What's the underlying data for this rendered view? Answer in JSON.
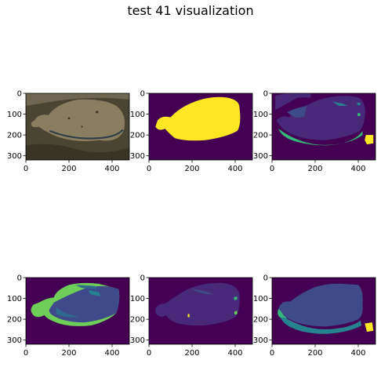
{
  "figure": {
    "title": "test 41 visualization"
  },
  "colors": {
    "viridis_dark": "#440154",
    "viridis_indigo": "#482878",
    "viridis_blue": "#3e4a89",
    "viridis_slate": "#31688e",
    "viridis_teal": "#26828e",
    "viridis_green": "#35b779",
    "viridis_lime": "#6ece58",
    "viridis_yellow": "#fde725",
    "photo_ground": "#4a4432",
    "photo_fish": "#8a7e60"
  },
  "chart_data": [
    {
      "type": "image",
      "content": "photo of flatfish on seabed",
      "xlabel": "",
      "ylabel": "",
      "xlim": [
        0,
        480
      ],
      "ylim": [
        320,
        0
      ],
      "xticks": [
        0,
        200,
        400
      ],
      "yticks": [
        0,
        100,
        200,
        300
      ]
    },
    {
      "type": "image",
      "content": "binary mask (yellow fish on purple)",
      "xlabel": "",
      "ylabel": "",
      "xlim": [
        0,
        480
      ],
      "ylim": [
        320,
        0
      ],
      "xticks": [
        0,
        200,
        400
      ],
      "yticks": [
        0,
        100,
        200,
        300
      ]
    },
    {
      "type": "image",
      "content": "segmentation map",
      "xlabel": "",
      "ylabel": "",
      "xlim": [
        0,
        480
      ],
      "ylim": [
        320,
        0
      ],
      "xticks": [
        0,
        200,
        400
      ],
      "yticks": [
        0,
        100,
        200,
        300
      ]
    },
    {
      "type": "image",
      "content": "segmentation map",
      "xlabel": "",
      "ylabel": "",
      "xlim": [
        0,
        480
      ],
      "ylim": [
        320,
        0
      ],
      "xticks": [
        0,
        200,
        400
      ],
      "yticks": [
        0,
        100,
        200,
        300
      ]
    },
    {
      "type": "image",
      "content": "segmentation map",
      "xlabel": "",
      "ylabel": "",
      "xlim": [
        0,
        480
      ],
      "ylim": [
        320,
        0
      ],
      "xticks": [
        0,
        200,
        400
      ],
      "yticks": [
        0,
        100,
        200,
        300
      ]
    },
    {
      "type": "image",
      "content": "segmentation map",
      "xlabel": "",
      "ylabel": "",
      "xlim": [
        0,
        480
      ],
      "ylim": [
        320,
        0
      ],
      "xticks": [
        0,
        200,
        400
      ],
      "yticks": [
        0,
        100,
        200,
        300
      ]
    }
  ]
}
